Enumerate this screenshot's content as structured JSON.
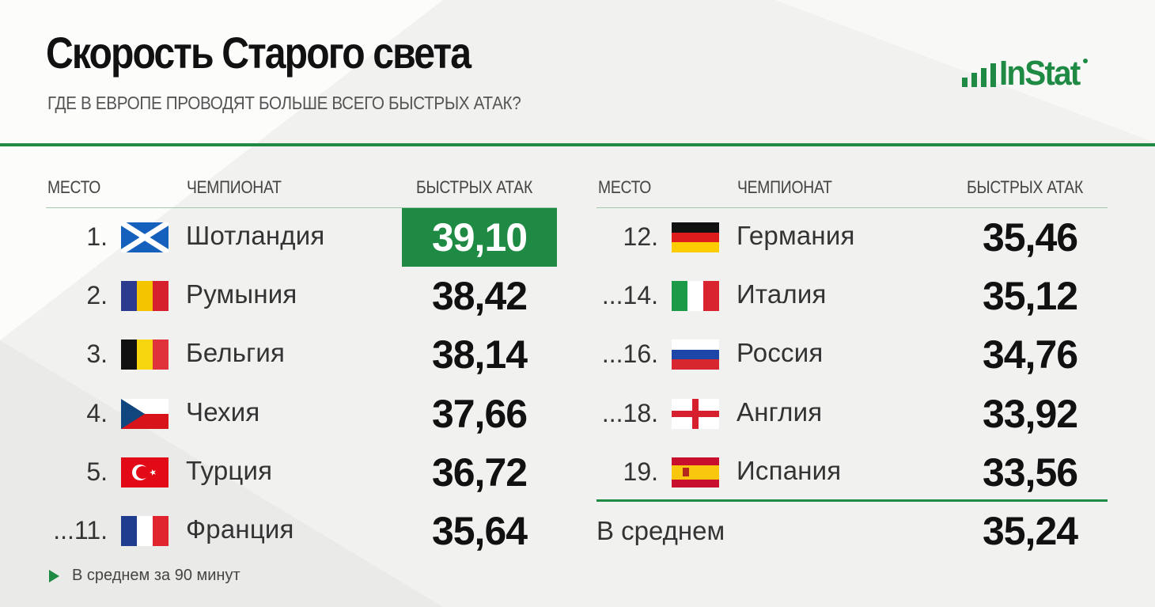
{
  "title": "Скорость Старого света",
  "subtitle": "ГДЕ В ЕВРОПЕ ПРОВОДЯТ БОЛЬШЕ ВСЕГО БЫСТРЫХ АТАК?",
  "logo": "InStat",
  "colors": {
    "accent": "#1e8a43",
    "background": "#f1f1ef",
    "text": "#111111"
  },
  "headers": {
    "place": "МЕСТО",
    "league": "ЧЕМПИОНАТ",
    "value": "БЫСТРЫХ АТАК"
  },
  "average": {
    "label": "В среднем",
    "value": "35,24"
  },
  "footnote": "В среднем за 90 минут",
  "chart_data": {
    "type": "table",
    "title": "Скорость Старого света",
    "subtitle": "ГДЕ В ЕВРОПЕ ПРОВОДЯТ БОЛЬШЕ ВСЕГО БЫСТРЫХ АТАК?",
    "columns": [
      "МЕСТО",
      "ЧЕМПИОНАТ",
      "БЫСТРЫХ АТАК"
    ],
    "left_rows": [
      {
        "rank": "1.",
        "league": "Шотландия",
        "value": "39,10",
        "flag": "scotland-flag",
        "highlight": true
      },
      {
        "rank": "2.",
        "league": "Румыния",
        "value": "38,42",
        "flag": "romania-flag"
      },
      {
        "rank": "3.",
        "league": "Бельгия",
        "value": "38,14",
        "flag": "belgium-flag"
      },
      {
        "rank": "4.",
        "league": "Чехия",
        "value": "37,66",
        "flag": "czech-flag"
      },
      {
        "rank": "5.",
        "league": "Турция",
        "value": "36,72",
        "flag": "turkey-flag"
      },
      {
        "rank": "...11.",
        "league": "Франция",
        "value": "35,64",
        "flag": "france-flag"
      }
    ],
    "right_rows": [
      {
        "rank": "12.",
        "league": "Германия",
        "value": "35,46",
        "flag": "germany-flag"
      },
      {
        "rank": "...14.",
        "league": "Италия",
        "value": "35,12",
        "flag": "italy-flag"
      },
      {
        "rank": "...16.",
        "league": "Россия",
        "value": "34,76",
        "flag": "russia-flag"
      },
      {
        "rank": "...18.",
        "league": "Англия",
        "value": "33,92",
        "flag": "england-flag"
      },
      {
        "rank": "19.",
        "league": "Испания",
        "value": "33,56",
        "flag": "spain-flag"
      }
    ],
    "average": {
      "label": "В среднем",
      "value": "35,24"
    },
    "note": "В среднем за 90 минут"
  }
}
